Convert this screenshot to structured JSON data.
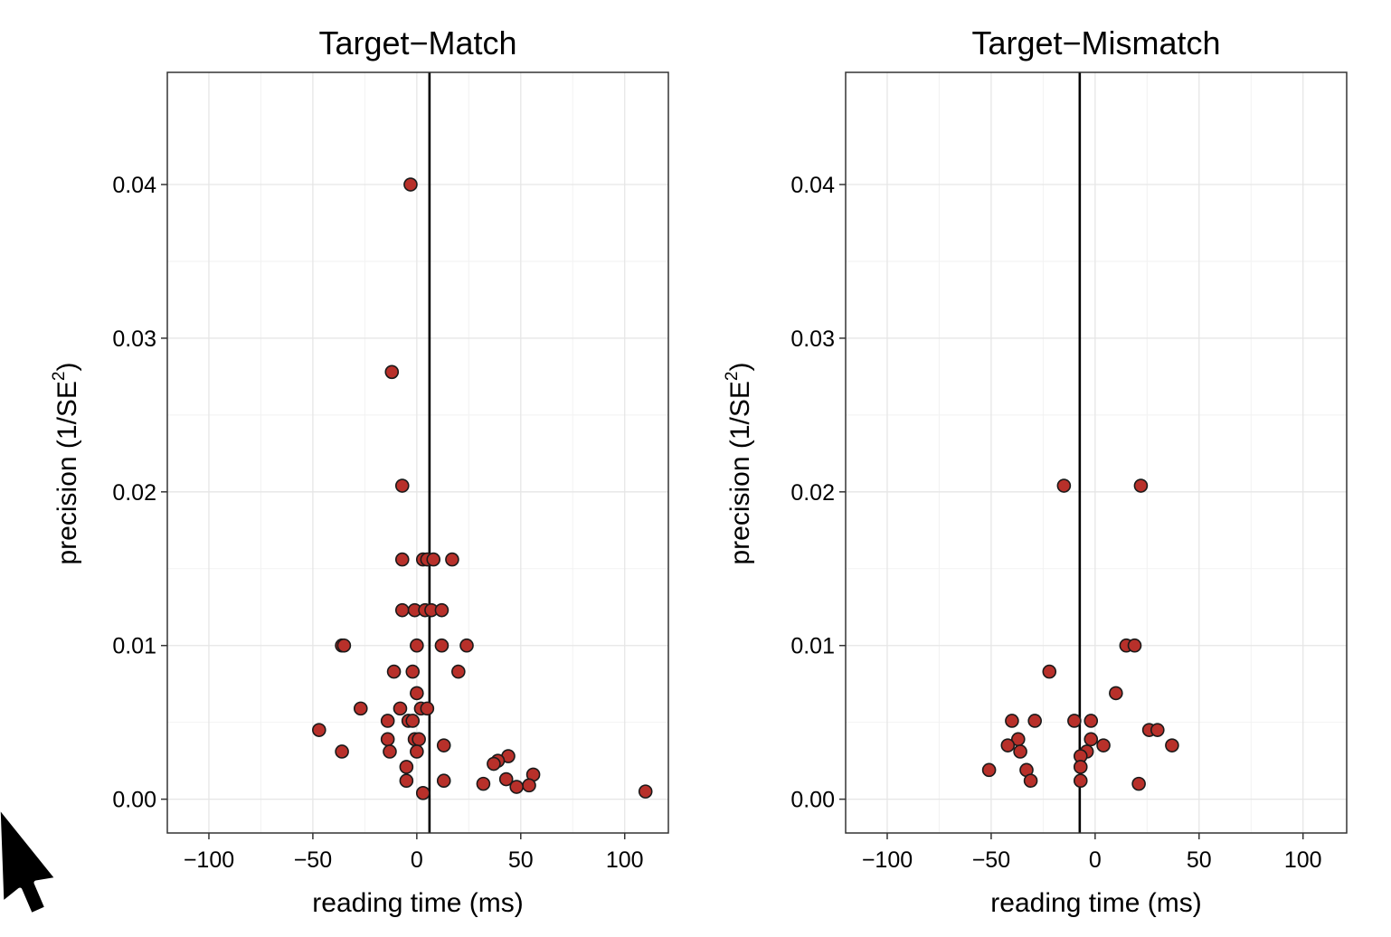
{
  "chart_data": [
    {
      "type": "scatter",
      "title": "Target−Match",
      "xlabel": "reading time (ms)",
      "ylabel_main": "precision (1/SE",
      "ylabel_sup": "2",
      "ylabel_close": ")",
      "xlim": [
        -120,
        121
      ],
      "ylim": [
        -0.0022,
        0.0473
      ],
      "xticks": [
        -100,
        -50,
        0,
        50,
        100
      ],
      "xtick_labels": [
        "−100",
        "−50",
        "0",
        "50",
        "100"
      ],
      "yticks": [
        0.0,
        0.01,
        0.02,
        0.03,
        0.04
      ],
      "ytick_labels": [
        "0.00",
        "0.01",
        "0.02",
        "0.03",
        "0.04"
      ],
      "grid": true,
      "vline_x": 6.1,
      "point_color": "#b8302a",
      "points": [
        {
          "x": -3,
          "y": 0.04
        },
        {
          "x": -12,
          "y": 0.0278
        },
        {
          "x": -7,
          "y": 0.0204
        },
        {
          "x": -7,
          "y": 0.0156
        },
        {
          "x": 3,
          "y": 0.0156
        },
        {
          "x": 5,
          "y": 0.0156
        },
        {
          "x": 8,
          "y": 0.0156
        },
        {
          "x": 17,
          "y": 0.0156
        },
        {
          "x": -7,
          "y": 0.0123
        },
        {
          "x": -1,
          "y": 0.0123
        },
        {
          "x": 4,
          "y": 0.0123
        },
        {
          "x": 7,
          "y": 0.0123
        },
        {
          "x": 12,
          "y": 0.0123
        },
        {
          "x": -36,
          "y": 0.01
        },
        {
          "x": -35,
          "y": 0.01
        },
        {
          "x": 0,
          "y": 0.01
        },
        {
          "x": 12,
          "y": 0.01
        },
        {
          "x": 24,
          "y": 0.01
        },
        {
          "x": -11,
          "y": 0.0083
        },
        {
          "x": -2,
          "y": 0.0083
        },
        {
          "x": 20,
          "y": 0.0083
        },
        {
          "x": 0,
          "y": 0.0069
        },
        {
          "x": -27,
          "y": 0.0059
        },
        {
          "x": -8,
          "y": 0.0059
        },
        {
          "x": 2,
          "y": 0.0059
        },
        {
          "x": 5,
          "y": 0.0059
        },
        {
          "x": -14,
          "y": 0.0051
        },
        {
          "x": -4,
          "y": 0.0051
        },
        {
          "x": -2,
          "y": 0.0051
        },
        {
          "x": -47,
          "y": 0.0045
        },
        {
          "x": -14,
          "y": 0.0039
        },
        {
          "x": -1,
          "y": 0.0039
        },
        {
          "x": 1,
          "y": 0.0039
        },
        {
          "x": 13,
          "y": 0.0035
        },
        {
          "x": -36,
          "y": 0.0031
        },
        {
          "x": -13,
          "y": 0.0031
        },
        {
          "x": 0,
          "y": 0.0031
        },
        {
          "x": 44,
          "y": 0.0028
        },
        {
          "x": 39,
          "y": 0.0025
        },
        {
          "x": 37,
          "y": 0.0023
        },
        {
          "x": -5,
          "y": 0.0021
        },
        {
          "x": 56,
          "y": 0.0016
        },
        {
          "x": 43,
          "y": 0.0013
        },
        {
          "x": -5,
          "y": 0.0012
        },
        {
          "x": 13,
          "y": 0.0012
        },
        {
          "x": 32,
          "y": 0.001
        },
        {
          "x": 54,
          "y": 0.0009
        },
        {
          "x": 48,
          "y": 0.0008
        },
        {
          "x": 110,
          "y": 0.0005
        },
        {
          "x": 3,
          "y": 0.0004
        }
      ]
    },
    {
      "type": "scatter",
      "title": "Target−Mismatch",
      "xlabel": "reading time (ms)",
      "ylabel_main": "precision (1/SE",
      "ylabel_sup": "2",
      "ylabel_close": ")",
      "xlim": [
        -120,
        121
      ],
      "ylim": [
        -0.0022,
        0.0473
      ],
      "xticks": [
        -100,
        -50,
        0,
        50,
        100
      ],
      "xtick_labels": [
        "−100",
        "−50",
        "0",
        "50",
        "100"
      ],
      "yticks": [
        0.0,
        0.01,
        0.02,
        0.03,
        0.04
      ],
      "ytick_labels": [
        "0.00",
        "0.01",
        "0.02",
        "0.03",
        "0.04"
      ],
      "grid": true,
      "vline_x": -7.4,
      "point_color": "#b8302a",
      "points": [
        {
          "x": -15,
          "y": 0.0204
        },
        {
          "x": 22,
          "y": 0.0204
        },
        {
          "x": 15,
          "y": 0.01
        },
        {
          "x": 19,
          "y": 0.01
        },
        {
          "x": -22,
          "y": 0.0083
        },
        {
          "x": 10,
          "y": 0.0069
        },
        {
          "x": -40,
          "y": 0.0051
        },
        {
          "x": -29,
          "y": 0.0051
        },
        {
          "x": -10,
          "y": 0.0051
        },
        {
          "x": -2,
          "y": 0.0051
        },
        {
          "x": 26,
          "y": 0.0045
        },
        {
          "x": 30,
          "y": 0.0045
        },
        {
          "x": -37,
          "y": 0.0039
        },
        {
          "x": -2,
          "y": 0.0039
        },
        {
          "x": -42,
          "y": 0.0035
        },
        {
          "x": 4,
          "y": 0.0035
        },
        {
          "x": 37,
          "y": 0.0035
        },
        {
          "x": -36,
          "y": 0.0031
        },
        {
          "x": -4,
          "y": 0.0031
        },
        {
          "x": -7,
          "y": 0.0028
        },
        {
          "x": -51,
          "y": 0.0019
        },
        {
          "x": -33,
          "y": 0.0019
        },
        {
          "x": -7,
          "y": 0.0021
        },
        {
          "x": -31,
          "y": 0.0012
        },
        {
          "x": -7,
          "y": 0.0012
        },
        {
          "x": 21,
          "y": 0.001
        }
      ]
    }
  ]
}
